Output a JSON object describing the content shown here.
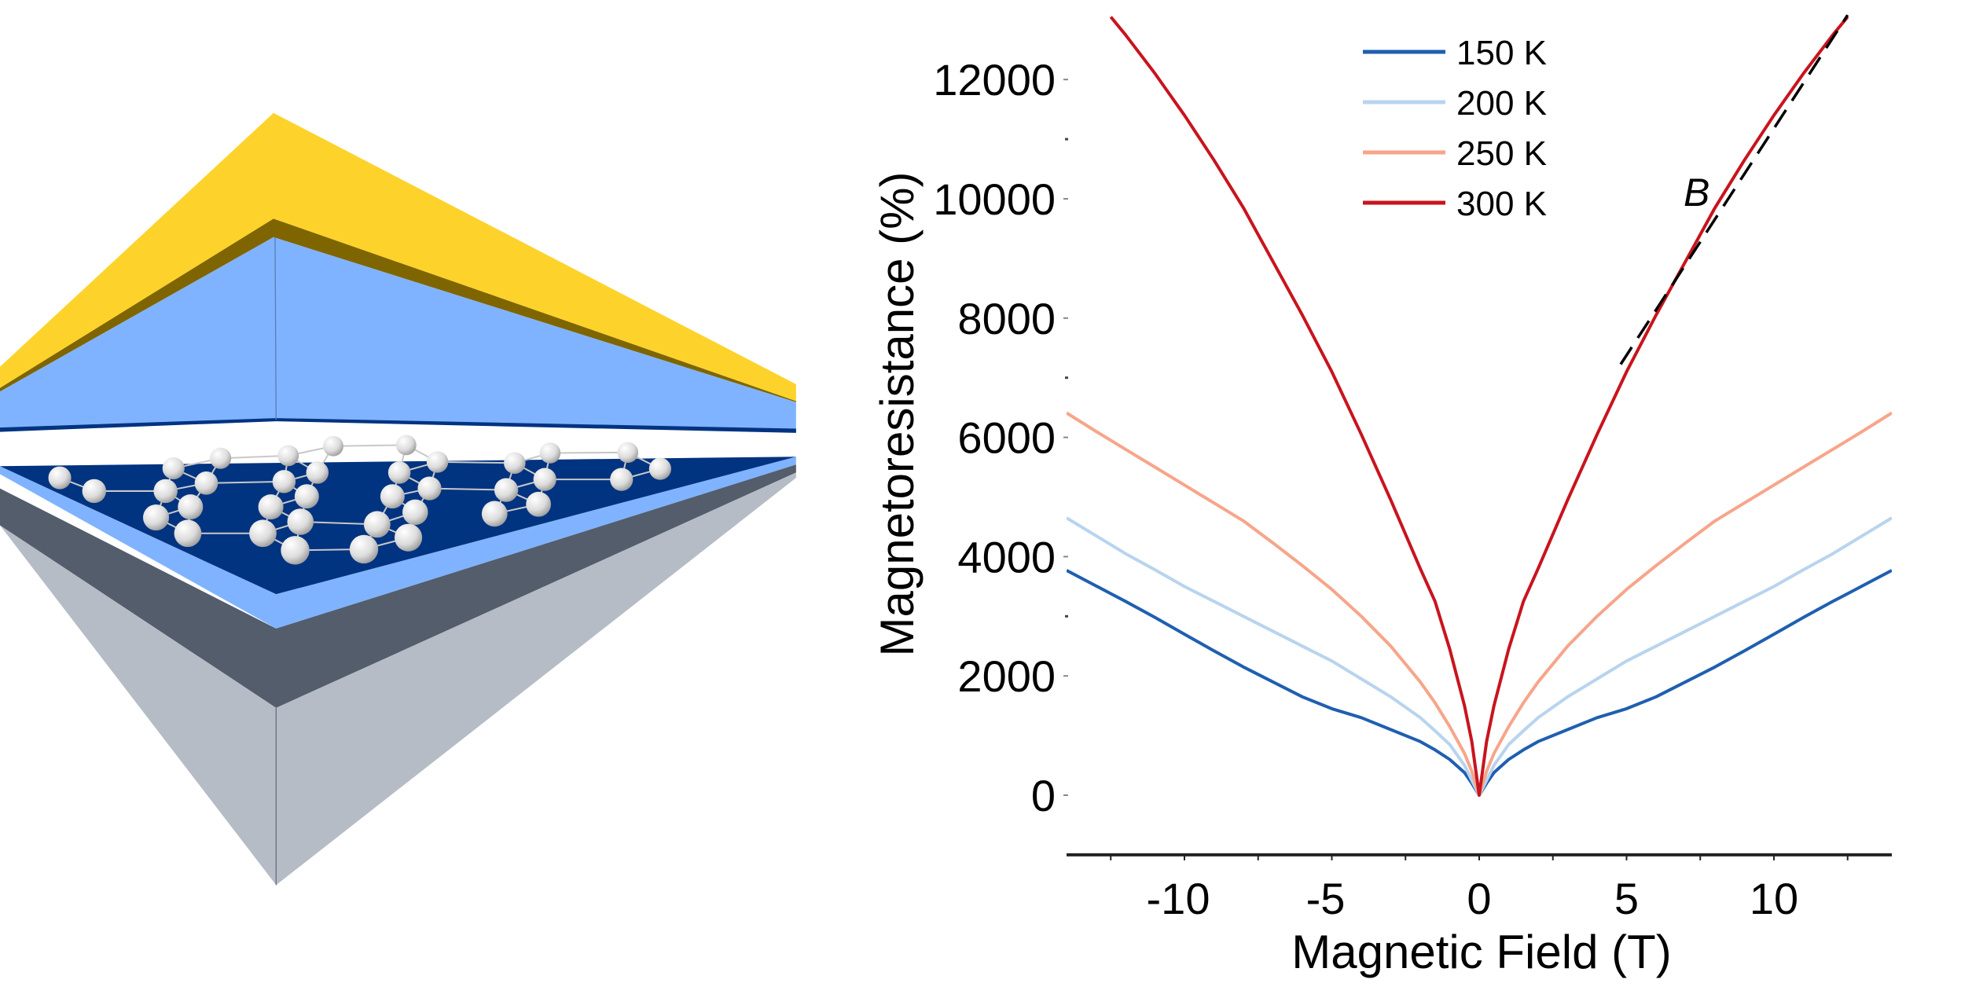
{
  "illustration": {
    "colors": {
      "gold_top": "#fdd32b",
      "gold_side": "#7f6500",
      "light_blue": "#80b3ff",
      "navy": "#003380",
      "dark_gray": "#535d6c",
      "light_gray": "#b6bcc6",
      "atom": "#e6e6e6"
    }
  },
  "chart_data": {
    "type": "line",
    "title": "",
    "xlabel": "Magnetic Field (T)",
    "ylabel": "Magnetoresistance (%)",
    "xlim": [
      -14,
      14
    ],
    "ylim": [
      -1000,
      13330
    ],
    "grid": false,
    "legend_position": "top-center",
    "x_ticks": [
      -10,
      -5,
      0,
      5,
      10
    ],
    "x_tick_labels": [
      "-10",
      "-5",
      "0",
      "5",
      "10"
    ],
    "y_ticks": [
      0,
      2000,
      4000,
      6000,
      8000,
      10000,
      12000
    ],
    "y_tick_labels": [
      "0",
      "2000",
      "4000",
      "6000",
      "8000",
      "10000",
      "12000"
    ],
    "annotation": "B",
    "x": [
      0,
      0.25,
      0.5,
      1,
      1.5,
      2,
      3,
      4,
      5,
      6,
      7,
      8,
      9,
      10,
      11,
      12,
      12.5,
      13,
      14
    ],
    "series": [
      {
        "name": "150 K",
        "color": "#1f5fb0",
        "values": [
          0,
          200,
          380,
          600,
          760,
          900,
          1100,
          1300,
          1450,
          1650,
          1900,
          2150,
          2420,
          2700,
          2980,
          3250,
          3380,
          3510,
          3770
        ]
      },
      {
        "name": "200 K",
        "color": "#b8d4ee",
        "values": [
          0,
          250,
          500,
          850,
          1080,
          1300,
          1650,
          1950,
          2250,
          2500,
          2750,
          3000,
          3250,
          3500,
          3780,
          4050,
          4200,
          4350,
          4650
        ]
      },
      {
        "name": "250 K",
        "color": "#f7a58a",
        "values": [
          0,
          400,
          700,
          1150,
          1550,
          1900,
          2500,
          3000,
          3450,
          3850,
          4230,
          4600,
          4900,
          5200,
          5500,
          5800,
          5950,
          6100,
          6410
        ]
      },
      {
        "name": "300 K",
        "color": "#c8141e",
        "values": [
          0,
          900,
          1500,
          2450,
          3250,
          3800,
          4950,
          6050,
          7100,
          8050,
          8950,
          9850,
          10650,
          11400,
          12100,
          12750,
          13050,
          null,
          null
        ]
      }
    ],
    "fit_line": {
      "label": "B",
      "color": "#000000",
      "style": "dashed",
      "x": [
        4.8,
        12.5
      ],
      "values": [
        7225,
        13080
      ]
    }
  }
}
